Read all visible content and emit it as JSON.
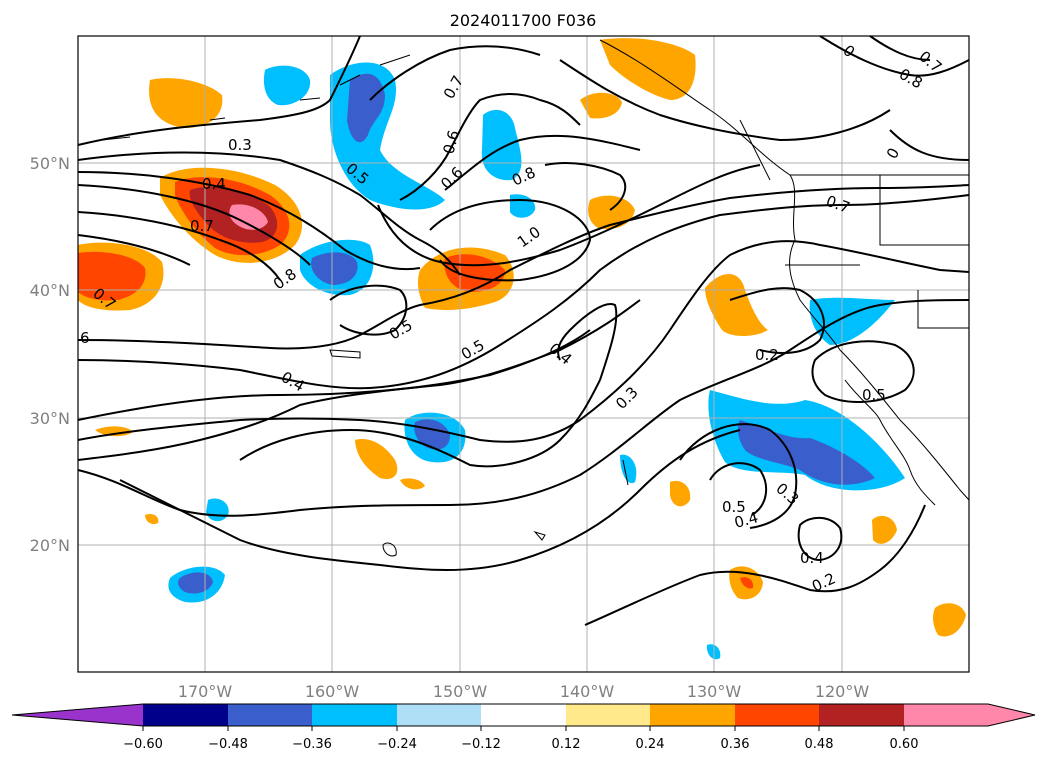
{
  "title": "2024011700 F036",
  "map": {
    "lat_labels": [
      "50°N",
      "40°N",
      "30°N",
      "20°N"
    ],
    "lon_labels": [
      "170°W",
      "160°W",
      "150°W",
      "140°W",
      "130°W",
      "120°W"
    ],
    "contour_labels": [
      "0.3",
      "0.4",
      "0.7",
      "0.8",
      "0.7",
      "6",
      "0.5",
      "0.7",
      "0.6",
      "0.6",
      "0.8",
      "1.0",
      "0.5",
      "0.5",
      "0.4",
      "0.4",
      "0.3",
      "0.2",
      "0.7",
      "0.5",
      "0.3",
      "0.5",
      "0.4",
      "0.4",
      "0.2",
      "0",
      "0.7",
      "0.8",
      "0"
    ],
    "shading_colors": {
      "neg_060": "#9933cc",
      "neg_048": "#00008b",
      "neg_036": "#3a5fcd",
      "neg_024": "#00bfff",
      "neg_012": "#afdff7",
      "zero": "#ffffff",
      "pos_012": "#ffe98a",
      "pos_024": "#ffa500",
      "pos_036": "#ff4500",
      "pos_048": "#b22222",
      "pos_060": "#ff88aa"
    }
  },
  "colorbar": {
    "ticks": [
      "−0.60",
      "−0.48",
      "−0.36",
      "−0.24",
      "−0.12",
      "0.12",
      "0.24",
      "0.36",
      "0.48",
      "0.60"
    ],
    "colors": [
      "#9933cc",
      "#00008b",
      "#3a5fcd",
      "#00bfff",
      "#afdff7",
      "#ffffff",
      "#ffe98a",
      "#ffa500",
      "#ff4500",
      "#b22222",
      "#ff88aa"
    ]
  }
}
